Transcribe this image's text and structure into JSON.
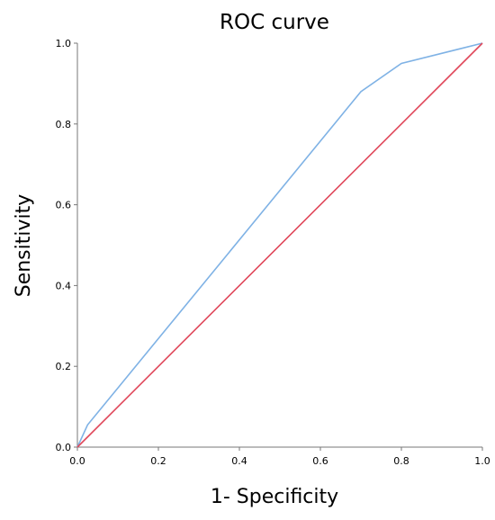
{
  "chart_data": {
    "type": "line",
    "title": "ROC curve",
    "xlabel": "1- Specificity",
    "ylabel": "Sensitivity",
    "xlim": [
      0,
      1
    ],
    "ylim": [
      0,
      1
    ],
    "x_ticks": [
      "0.0",
      "0.2",
      "0.4",
      "0.6",
      "0.8",
      "1.0"
    ],
    "y_ticks": [
      "0.0",
      "0.2",
      "0.4",
      "0.6",
      "0.8",
      "1.0"
    ],
    "grid": false,
    "legend": "none",
    "series": [
      {
        "color": "#7fb2e5",
        "x": [
          0.0,
          0.025,
          0.7,
          0.8,
          1.0
        ],
        "y": [
          0.0,
          0.055,
          0.88,
          0.95,
          1.0
        ]
      },
      {
        "color": "#e0475a",
        "x": [
          0.0,
          1.0
        ],
        "y": [
          0.0,
          1.0
        ]
      }
    ]
  }
}
